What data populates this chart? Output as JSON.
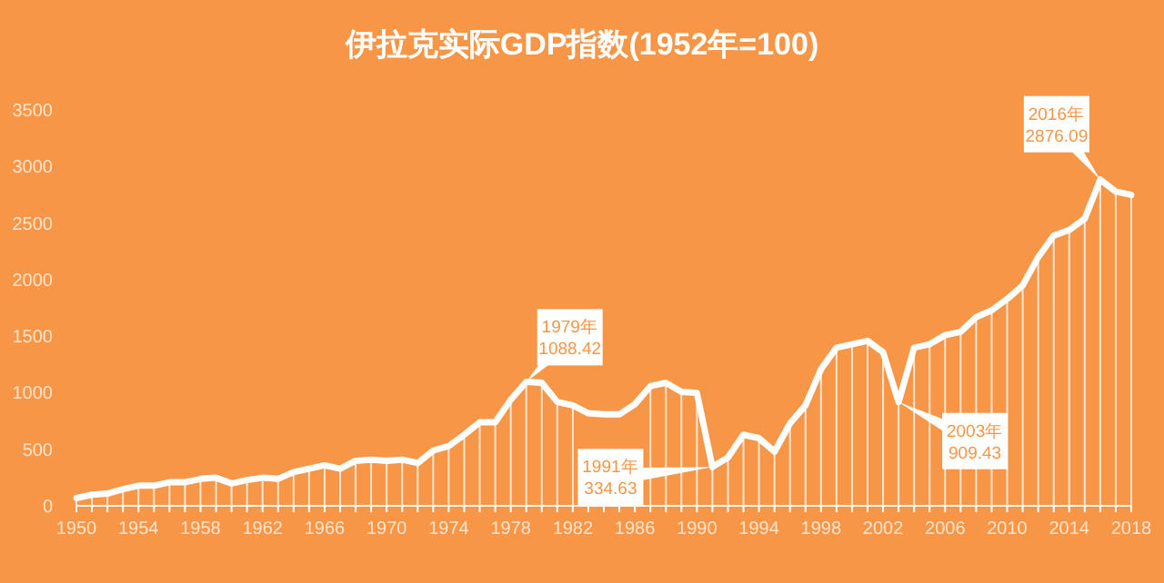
{
  "chart_data": {
    "type": "line",
    "title": "伊拉克实际GDP指数(1952年=100)",
    "x": [
      1950,
      1951,
      1952,
      1953,
      1954,
      1955,
      1956,
      1957,
      1958,
      1959,
      1960,
      1961,
      1962,
      1963,
      1964,
      1965,
      1966,
      1967,
      1968,
      1969,
      1970,
      1971,
      1972,
      1973,
      1974,
      1975,
      1976,
      1977,
      1978,
      1979,
      1980,
      1981,
      1982,
      1983,
      1984,
      1985,
      1986,
      1987,
      1988,
      1989,
      1990,
      1991,
      1992,
      1993,
      1994,
      1995,
      1996,
      1997,
      1998,
      1999,
      2000,
      2001,
      2002,
      2003,
      2004,
      2005,
      2006,
      2007,
      2008,
      2009,
      2010,
      2011,
      2012,
      2013,
      2014,
      2015,
      2016,
      2017,
      2018
    ],
    "series": [
      {
        "color": "#ffffff",
        "values": [
          60,
          90,
          100,
          140,
          170,
          170,
          200,
          200,
          230,
          240,
          190,
          220,
          240,
          230,
          290,
          320,
          350,
          320,
          390,
          400,
          390,
          400,
          370,
          480,
          520,
          620,
          730,
          730,
          930,
          1088.42,
          1080,
          910,
          880,
          810,
          800,
          800,
          890,
          1050,
          1080,
          1000,
          990,
          334.63,
          420,
          620,
          590,
          470,
          720,
          880,
          1200,
          1390,
          1420,
          1450,
          1350,
          909.43,
          1390,
          1420,
          1500,
          1530,
          1660,
          1720,
          1820,
          1940,
          2190,
          2380,
          2430,
          2530,
          2876.09,
          2770,
          2740
        ]
      },
      {
        "type": "bar",
        "color": "#ffffff",
        "values": [
          60,
          90,
          100,
          140,
          170,
          170,
          200,
          200,
          230,
          240,
          190,
          220,
          240,
          230,
          290,
          320,
          350,
          320,
          390,
          400,
          390,
          400,
          370,
          480,
          520,
          620,
          730,
          730,
          930,
          1088.42,
          1080,
          910,
          880,
          null,
          null,
          null,
          null,
          1050,
          1080,
          1000,
          990,
          334.63,
          420,
          620,
          590,
          470,
          720,
          880,
          1200,
          1390,
          1420,
          1450,
          1350,
          909.43,
          1390,
          1420,
          1500,
          1530,
          1660,
          1720,
          1820,
          1940,
          2190,
          2380,
          2430,
          2530,
          2876.09,
          2770,
          2740
        ]
      }
    ],
    "ylim": [
      0,
      3500
    ],
    "yticks": [
      0,
      500,
      1000,
      1500,
      2000,
      2500,
      3000,
      3500
    ],
    "xlim": [
      1950,
      2018
    ],
    "xticks": [
      1950,
      {
        "value": 1951,
        "label": null
      },
      {
        "value": 1952,
        "label": null
      },
      {
        "value": 1953,
        "label": null
      },
      1954,
      {
        "value": 1955,
        "label": null
      },
      {
        "value": 1956,
        "label": null
      },
      {
        "value": 1957,
        "label": null
      },
      1958,
      {
        "value": 1959,
        "label": null
      },
      {
        "value": 1960,
        "label": null
      },
      {
        "value": 1961,
        "label": null
      },
      1962,
      {
        "value": 1963,
        "label": null
      },
      {
        "value": 1964,
        "label": null
      },
      {
        "value": 1965,
        "label": null
      },
      1966,
      {
        "value": 1967,
        "label": null
      },
      {
        "value": 1968,
        "label": null
      },
      {
        "value": 1969,
        "label": null
      },
      1970,
      {
        "value": 1971,
        "label": null
      },
      {
        "value": 1972,
        "label": null
      },
      {
        "value": 1973,
        "label": null
      },
      1974,
      {
        "value": 1975,
        "label": null
      },
      {
        "value": 1976,
        "label": null
      },
      {
        "value": 1977,
        "label": null
      },
      1978,
      {
        "value": 1979,
        "label": null
      },
      {
        "value": 1980,
        "label": null
      },
      {
        "value": 1981,
        "label": null
      },
      1982,
      {
        "value": 1983,
        "label": null
      },
      {
        "value": 1984,
        "label": null
      },
      {
        "value": 1985,
        "label": null
      },
      1986,
      {
        "value": 1987,
        "label": null
      },
      {
        "value": 1988,
        "label": null
      },
      {
        "value": 1989,
        "label": null
      },
      1990,
      {
        "value": 1991,
        "label": null
      },
      {
        "value": 1992,
        "label": null
      },
      {
        "value": 1993,
        "label": null
      },
      1994,
      {
        "value": 1995,
        "label": null
      },
      {
        "value": 1996,
        "label": null
      },
      {
        "value": 1997,
        "label": null
      },
      1998,
      {
        "value": 1999,
        "label": null
      },
      {
        "value": 2000,
        "label": null
      },
      {
        "value": 2001,
        "label": null
      },
      2002,
      {
        "value": 2003,
        "label": null
      },
      {
        "value": 2004,
        "label": null
      },
      {
        "value": 2005,
        "label": null
      },
      2006,
      {
        "value": 2007,
        "label": null
      },
      {
        "value": 2008,
        "label": null
      },
      {
        "value": 2009,
        "label": null
      },
      2010,
      {
        "value": 2011,
        "label": null
      },
      {
        "value": 2012,
        "label": null
      },
      {
        "value": 2013,
        "label": null
      },
      2014,
      {
        "value": 2015,
        "label": null
      },
      {
        "value": 2016,
        "label": null
      },
      {
        "value": 2017,
        "label": null
      },
      2018
    ],
    "grid": false,
    "annotations": [
      {
        "text": "1979年\n1088.42",
        "x": 1979,
        "y": 1088.42
      },
      {
        "text": "1991年\n334.63",
        "x": 1991,
        "y": 334.63
      },
      {
        "text": "2003年\n909.43",
        "x": 2003,
        "y": 909.43
      },
      {
        "text": "2016年\n2876.09",
        "x": 2016,
        "y": 2876.09
      }
    ]
  }
}
